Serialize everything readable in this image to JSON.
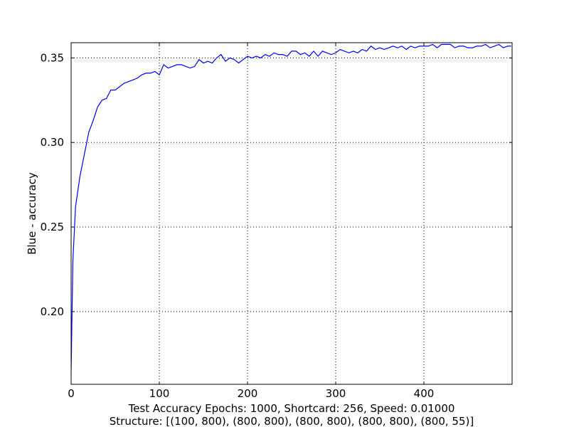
{
  "chart_data": {
    "type": "line",
    "ylabel": "Blue - accuracy",
    "xlabel": [
      "Test Accuracy Epochs: 1000, Shortcard: 256, Speed: 0.01000",
      "Structure: [(100, 800), (800, 800), (800, 800), (800, 800), (800, 55)]"
    ],
    "xlim": [
      0,
      500
    ],
    "ylim": [
      0.157,
      0.359
    ],
    "xticks": [
      0,
      100,
      200,
      300,
      400
    ],
    "yticks": [
      {
        "value": 0.2,
        "label": "0.20"
      },
      0.25,
      {
        "value": 0.3,
        "label": "0.30"
      },
      0.35
    ],
    "grid": true,
    "x": [
      0,
      2,
      5,
      10,
      15,
      20,
      25,
      30,
      35,
      40,
      45,
      50,
      55,
      60,
      65,
      70,
      75,
      80,
      85,
      90,
      95,
      100,
      105,
      110,
      115,
      120,
      125,
      130,
      135,
      140,
      145,
      150,
      155,
      160,
      165,
      170,
      175,
      180,
      185,
      190,
      195,
      200,
      205,
      210,
      215,
      220,
      225,
      230,
      235,
      240,
      245,
      250,
      255,
      260,
      265,
      270,
      275,
      280,
      285,
      290,
      295,
      300,
      305,
      310,
      315,
      320,
      325,
      330,
      335,
      340,
      345,
      350,
      355,
      360,
      365,
      370,
      375,
      380,
      385,
      390,
      395,
      400,
      405,
      410,
      415,
      420,
      425,
      430,
      435,
      440,
      445,
      450,
      455,
      460,
      465,
      470,
      475,
      480,
      485,
      490,
      495,
      499
    ],
    "series": [
      {
        "name": "accuracy",
        "color": "#0000ff",
        "values": [
          0.165,
          0.23,
          0.262,
          0.28,
          0.293,
          0.306,
          0.313,
          0.321,
          0.325,
          0.326,
          0.331,
          0.331,
          0.333,
          0.335,
          0.336,
          0.337,
          0.338,
          0.34,
          0.341,
          0.341,
          0.342,
          0.34,
          0.346,
          0.344,
          0.345,
          0.346,
          0.346,
          0.345,
          0.344,
          0.345,
          0.349,
          0.347,
          0.348,
          0.347,
          0.35,
          0.352,
          0.348,
          0.35,
          0.349,
          0.347,
          0.349,
          0.351,
          0.35,
          0.351,
          0.35,
          0.352,
          0.351,
          0.353,
          0.352,
          0.352,
          0.351,
          0.354,
          0.354,
          0.352,
          0.353,
          0.351,
          0.354,
          0.351,
          0.354,
          0.353,
          0.352,
          0.353,
          0.355,
          0.354,
          0.353,
          0.354,
          0.353,
          0.355,
          0.354,
          0.357,
          0.355,
          0.356,
          0.355,
          0.356,
          0.357,
          0.356,
          0.357,
          0.355,
          0.357,
          0.356,
          0.357,
          0.357,
          0.357,
          0.358,
          0.356,
          0.358,
          0.358,
          0.358,
          0.356,
          0.357,
          0.357,
          0.356,
          0.356,
          0.357,
          0.357,
          0.358,
          0.356,
          0.357,
          0.358,
          0.356,
          0.357,
          0.357
        ]
      }
    ]
  }
}
